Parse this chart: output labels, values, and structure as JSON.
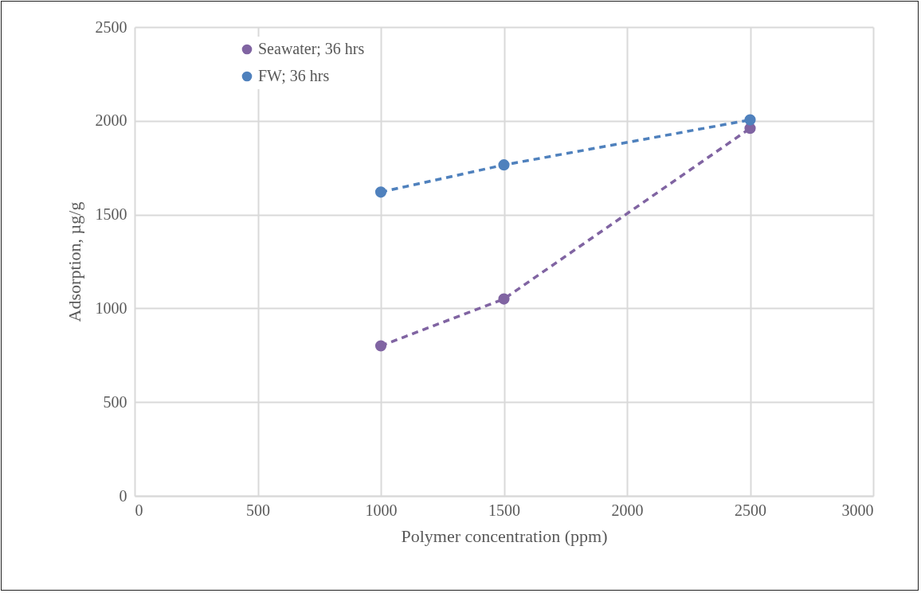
{
  "chart_data": {
    "type": "line",
    "xlabel": "Polymer concentration (ppm)",
    "ylabel": "Adsorption, µg/g",
    "x": [
      1000,
      1500,
      2500
    ],
    "series": [
      {
        "name": "Seawater; 36 hrs",
        "color": "#8064a2",
        "values": [
          800,
          1050,
          1960
        ]
      },
      {
        "name": "FW; 36 hrs",
        "color": "#4f81bd",
        "values": [
          1620,
          1765,
          2005
        ]
      }
    ],
    "xlim": [
      0,
      3000
    ],
    "xticks": [
      0,
      500,
      1000,
      1500,
      2000,
      2500,
      3000
    ],
    "ylim": [
      0,
      2500
    ],
    "yticks": [
      0,
      500,
      1000,
      1500,
      2000,
      2500
    ],
    "grid": true,
    "legend": "top left",
    "marker": "circle",
    "line_style": "dashed"
  }
}
